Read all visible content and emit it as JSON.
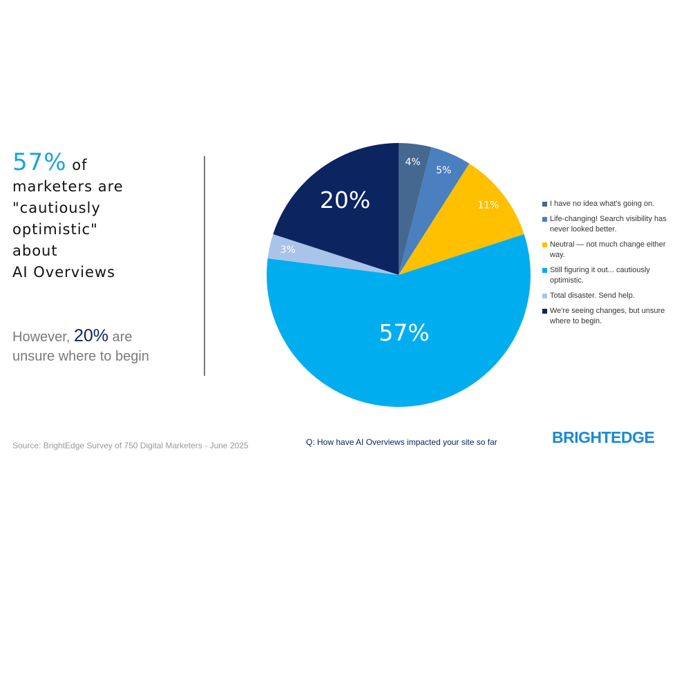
{
  "headline": {
    "stat": "57%",
    "stat_suffix": "of",
    "lines": [
      "marketers are",
      "\"cautiously",
      "optimistic\"",
      "about",
      "AI Overviews"
    ]
  },
  "subhead": {
    "prefix": "However,",
    "stat": "20%",
    "suffix": "are",
    "line2": "unsure where to begin"
  },
  "source": "Source: BrightEdge Survey of 750 Digital Marketers - June 2025",
  "question": "Q: How have AI Overviews impacted your site so far",
  "logo": "BRIGHTEDGE",
  "chart_data": {
    "type": "pie",
    "categories": [
      "I have no idea what's going on.",
      "Life-changing! Search visibility has never looked better.",
      "Neutral — not much change either way.",
      "Still figuring it out... cautiously optimistic.",
      "Total disaster. Send help.",
      "We're seeing changes, but unsure where to begin."
    ],
    "values": [
      4,
      5,
      11,
      57,
      3,
      20
    ],
    "value_labels": [
      "4%",
      "5%",
      "11%",
      "57%",
      "3%",
      "20%"
    ],
    "colors": [
      "#44688f",
      "#4a7fc0",
      "#ffc000",
      "#00adef",
      "#a9c4e8",
      "#0c2460"
    ],
    "legend": "right"
  }
}
